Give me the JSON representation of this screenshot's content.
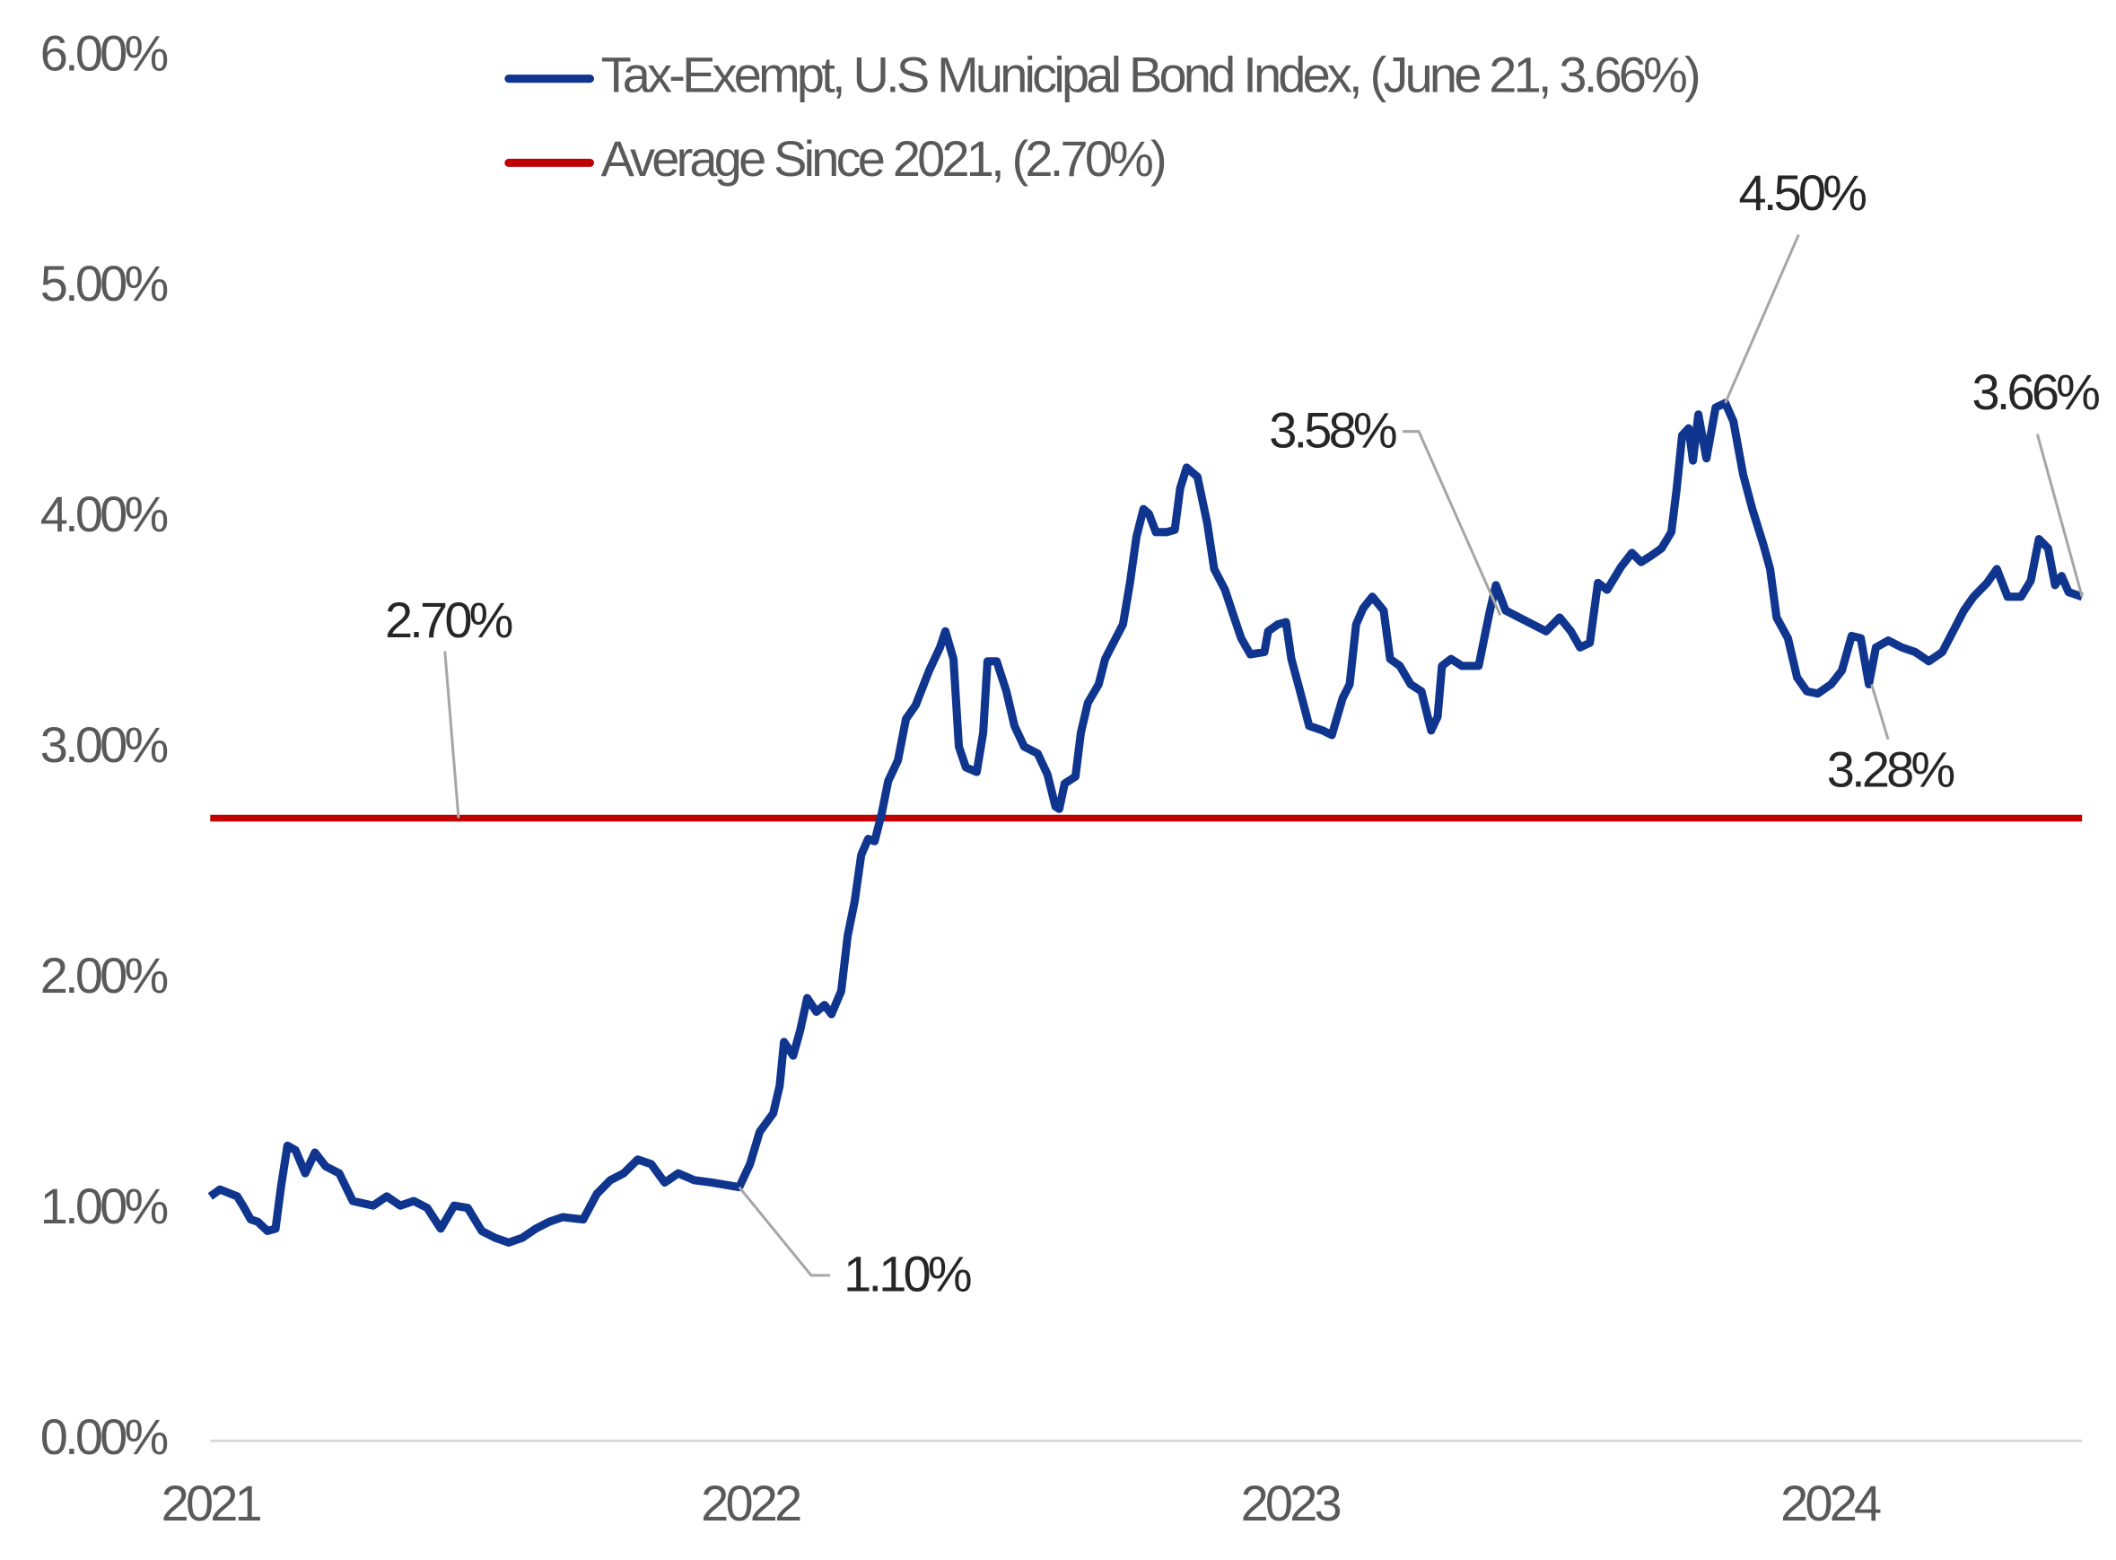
{
  "chart_data": {
    "type": "line",
    "x": [
      2021.0,
      2021.018,
      2021.05,
      2021.063,
      2021.075,
      2021.088,
      2021.106,
      2021.121,
      2021.131,
      2021.143,
      2021.158,
      2021.176,
      2021.194,
      2021.214,
      2021.239,
      2021.264,
      2021.302,
      2021.327,
      2021.352,
      2021.377,
      2021.402,
      2021.427,
      2021.452,
      2021.477,
      2021.503,
      2021.528,
      2021.553,
      2021.578,
      2021.603,
      2021.628,
      2021.653,
      2021.691,
      2021.716,
      2021.741,
      2021.766,
      2021.792,
      2021.817,
      2021.842,
      2021.867,
      2021.897,
      2021.93,
      2021.98,
      2022.0,
      2022.018,
      2022.043,
      2022.055,
      2022.063,
      2022.08,
      2022.093,
      2022.106,
      2022.123,
      2022.138,
      2022.151,
      2022.169,
      2022.181,
      2022.194,
      2022.206,
      2022.219,
      2022.231,
      2022.244,
      2022.256,
      2022.274,
      2022.289,
      2022.307,
      2022.332,
      2022.352,
      2022.362,
      2022.377,
      2022.387,
      2022.4,
      2022.42,
      2022.432,
      2022.44,
      2022.457,
      2022.475,
      2022.49,
      2022.508,
      2022.533,
      2022.551,
      2022.566,
      2022.573,
      2022.583,
      2022.603,
      2022.613,
      2022.626,
      2022.646,
      2022.658,
      2022.671,
      2022.691,
      2022.704,
      2022.716,
      2022.729,
      2022.739,
      2022.752,
      2022.772,
      2022.787,
      2022.797,
      2022.809,
      2022.829,
      2022.847,
      2022.86,
      2022.88,
      2022.897,
      2022.91,
      2022.927,
      2022.953,
      2022.96,
      2022.978,
      2022.993,
      2023.003,
      2023.018,
      2023.036,
      2023.061,
      2023.078,
      2023.098,
      2023.111,
      2023.123,
      2023.136,
      2023.153,
      2023.174,
      2023.186,
      2023.204,
      2023.224,
      2023.244,
      2023.262,
      2023.274,
      2023.282,
      2023.299,
      2023.319,
      2023.35,
      2023.37,
      2023.382,
      2023.4,
      2023.425,
      2023.45,
      2023.475,
      2023.5,
      2023.521,
      2023.538,
      2023.556,
      2023.571,
      2023.588,
      2023.614,
      2023.634,
      2023.651,
      2023.671,
      2023.689,
      2023.707,
      2023.717,
      2023.727,
      2023.739,
      2023.747,
      2023.757,
      2023.772,
      2023.789,
      2023.807,
      2023.822,
      2023.84,
      2023.857,
      2023.877,
      2023.89,
      2023.902,
      2023.923,
      2023.94,
      2023.958,
      2023.978,
      2024.003,
      2024.023,
      2024.041,
      2024.058,
      2024.073,
      2024.086,
      2024.109,
      2024.134,
      2024.159,
      2024.184,
      2024.209,
      2024.229,
      2024.249,
      2024.267,
      2024.292,
      2024.31,
      2024.33,
      2024.355,
      2024.373,
      2024.388,
      2024.405,
      2024.418,
      2024.43,
      2024.443,
      2024.468
    ],
    "series": [
      {
        "name": "Tax-Exempt, U.S Municipal Bond Index,  (June 21, 3.66%)",
        "color": "#0f358f",
        "values": [
          1.06,
          1.09,
          1.06,
          1.01,
          0.96,
          0.95,
          0.91,
          0.92,
          1.1,
          1.28,
          1.26,
          1.16,
          1.25,
          1.19,
          1.16,
          1.04,
          1.02,
          1.06,
          1.02,
          1.04,
          1.01,
          0.92,
          1.02,
          1.01,
          0.91,
          0.88,
          0.86,
          0.88,
          0.92,
          0.95,
          0.97,
          0.96,
          1.07,
          1.13,
          1.16,
          1.22,
          1.2,
          1.12,
          1.16,
          1.13,
          1.12,
          1.1,
          1.2,
          1.34,
          1.42,
          1.54,
          1.73,
          1.67,
          1.78,
          1.92,
          1.86,
          1.89,
          1.85,
          1.95,
          2.19,
          2.34,
          2.54,
          2.61,
          2.6,
          2.72,
          2.86,
          2.95,
          3.13,
          3.19,
          3.34,
          3.44,
          3.51,
          3.39,
          3.01,
          2.92,
          2.9,
          3.07,
          3.38,
          3.38,
          3.25,
          3.1,
          3.01,
          2.98,
          2.89,
          2.75,
          2.74,
          2.85,
          2.88,
          3.07,
          3.2,
          3.28,
          3.39,
          3.45,
          3.54,
          3.72,
          3.92,
          4.04,
          4.02,
          3.94,
          3.94,
          3.95,
          4.13,
          4.22,
          4.18,
          3.98,
          3.78,
          3.69,
          3.57,
          3.48,
          3.41,
          3.42,
          3.51,
          3.54,
          3.55,
          3.39,
          3.26,
          3.1,
          3.08,
          3.06,
          3.22,
          3.28,
          3.54,
          3.61,
          3.66,
          3.6,
          3.39,
          3.36,
          3.28,
          3.25,
          3.08,
          3.14,
          3.36,
          3.39,
          3.36,
          3.36,
          3.59,
          3.71,
          3.6,
          3.57,
          3.54,
          3.51,
          3.57,
          3.51,
          3.44,
          3.46,
          3.72,
          3.69,
          3.79,
          3.85,
          3.81,
          3.84,
          3.87,
          3.94,
          4.13,
          4.36,
          4.39,
          4.25,
          4.45,
          4.26,
          4.48,
          4.5,
          4.42,
          4.19,
          4.04,
          3.89,
          3.78,
          3.57,
          3.48,
          3.31,
          3.25,
          3.24,
          3.28,
          3.34,
          3.49,
          3.48,
          3.28,
          3.44,
          3.47,
          3.44,
          3.42,
          3.38,
          3.42,
          3.51,
          3.6,
          3.66,
          3.72,
          3.78,
          3.66,
          3.66,
          3.73,
          3.91,
          3.87,
          3.71,
          3.75,
          3.68,
          3.66
        ]
      }
    ],
    "hlines": [
      {
        "name": "Average Since 2021, (2.70%)",
        "color": "#c00000",
        "value": 2.7
      }
    ],
    "annotations": [
      {
        "label": "2.70%",
        "x": 2021.46,
        "y": 2.7
      },
      {
        "label": "1.10%",
        "x": 2021.98,
        "y": 1.1
      },
      {
        "label": "3.58%",
        "x": 2023.39,
        "y": 3.58
      },
      {
        "label": "4.50%",
        "x": 2023.807,
        "y": 4.5
      },
      {
        "label": "3.66%",
        "x": 2024.468,
        "y": 3.66
      },
      {
        "label": "3.28%",
        "x": 2024.078,
        "y": 3.28
      }
    ],
    "xlim": [
      2021,
      2024.468
    ],
    "xticks": [
      2021,
      2022,
      2023,
      2024
    ],
    "ylim": [
      0,
      6
    ],
    "yticks": [
      {
        "value": 0,
        "label": "0.00%"
      },
      {
        "value": 1,
        "label": "1.00%"
      },
      {
        "value": 2,
        "label": "2.00%"
      },
      {
        "value": 3,
        "label": "3.00%"
      },
      {
        "value": 4,
        "label": "4.00%"
      },
      {
        "value": 5,
        "label": "5.00%"
      },
      {
        "value": 6,
        "label": "6.00%"
      }
    ],
    "legend": "top"
  }
}
